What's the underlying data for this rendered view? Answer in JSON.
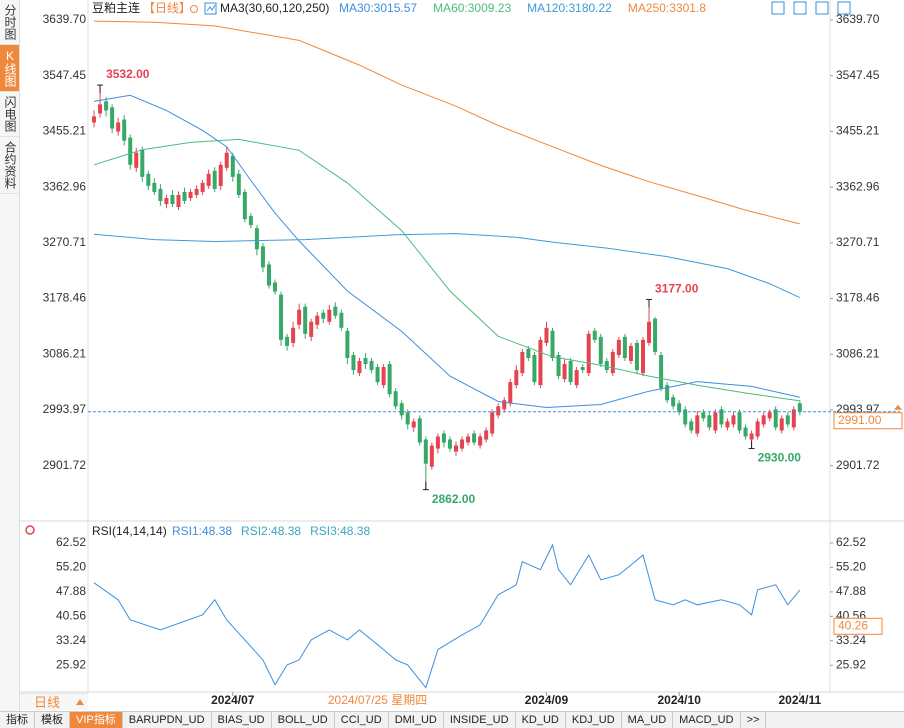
{
  "sidebar": {
    "tabs": [
      "分时图",
      "K线图",
      "闪电图",
      "合约资料"
    ],
    "active": 1
  },
  "chart_data": [
    {
      "type": "candlestick",
      "title": "豆粕主连",
      "period": "【日线】",
      "indicator": "MA3(30,60,120,250)",
      "up_color": "#e5434f",
      "down_color": "#38a868",
      "xlim": [
        -1,
        122
      ],
      "ylim": [
        2820,
        3653
      ],
      "yticks": [
        {
          "value": 3639.7,
          "label": "3639.70"
        },
        3547.45,
        3455.21,
        3362.96,
        3270.71,
        3178.46,
        3086.21,
        2993.97,
        2901.72
      ],
      "open": [
        3470,
        3485,
        3505,
        3495,
        3455,
        3475,
        3445,
        3395,
        3425,
        3385,
        3370,
        3360,
        3335,
        3350,
        3330,
        3355,
        3345,
        3350,
        3355,
        3365,
        3390,
        3365,
        3395,
        3415,
        3385,
        3355,
        3315,
        3295,
        3265,
        3235,
        3205,
        3185,
        3115,
        3105,
        3135,
        3165,
        3115,
        3135,
        3155,
        3140,
        3165,
        3155,
        3125,
        3085,
        3055,
        3080,
        3075,
        3065,
        3035,
        3070,
        3025,
        3005,
        2990,
        2965,
        2980,
        2945,
        2900,
        2930,
        2955,
        2945,
        2925,
        2930,
        2940,
        2955,
        2935,
        2945,
        2955,
        2985,
        2995,
        3005,
        3035,
        3055,
        3095,
        3085,
        3035,
        3105,
        3125,
        3085,
        3045,
        3075,
        3035,
        3065,
        3055,
        3125,
        3115,
        3075,
        3055,
        3085,
        3115,
        3075,
        3105,
        3055,
        3105,
        3145,
        3085,
        3035,
        3015,
        3005,
        2995,
        2975,
        2955,
        2990,
        2985,
        2960,
        2995,
        2965,
        2970,
        2990,
        2965,
        2945,
        2950,
        2970,
        2980,
        2995,
        2960,
        2985,
        2965,
        3005
      ],
      "high": [
        3490,
        3532,
        3512,
        3500,
        3478,
        3482,
        3450,
        3428,
        3430,
        3390,
        3378,
        3368,
        3350,
        3358,
        3356,
        3362,
        3360,
        3366,
        3375,
        3392,
        3396,
        3405,
        3430,
        3420,
        3392,
        3360,
        3320,
        3300,
        3270,
        3240,
        3210,
        3190,
        3120,
        3140,
        3170,
        3170,
        3145,
        3156,
        3160,
        3168,
        3172,
        3160,
        3130,
        3090,
        3080,
        3088,
        3080,
        3070,
        3070,
        3075,
        3030,
        3010,
        2995,
        2980,
        2985,
        2950,
        2940,
        2955,
        2960,
        2950,
        2942,
        2950,
        2955,
        2960,
        2955,
        2965,
        2995,
        3005,
        3015,
        3045,
        3068,
        3095,
        3100,
        3090,
        3115,
        3140,
        3130,
        3090,
        3078,
        3080,
        3065,
        3070,
        3125,
        3130,
        3120,
        3080,
        3095,
        3115,
        3120,
        3105,
        3110,
        3115,
        3177,
        3148,
        3090,
        3040,
        3020,
        3010,
        3000,
        2980,
        2992,
        2995,
        2990,
        2995,
        3000,
        2980,
        2990,
        2995,
        2970,
        2960,
        2980,
        2990,
        2995,
        3000,
        2985,
        2990,
        3000,
        3010
      ],
      "low": [
        3462,
        3478,
        3480,
        3452,
        3448,
        3432,
        3392,
        3388,
        3372,
        3358,
        3350,
        3332,
        3328,
        3330,
        3325,
        3335,
        3340,
        3345,
        3350,
        3360,
        3355,
        3358,
        3390,
        3372,
        3345,
        3305,
        3295,
        3250,
        3222,
        3195,
        3185,
        3100,
        3092,
        3098,
        3128,
        3112,
        3108,
        3128,
        3138,
        3135,
        3145,
        3125,
        3070,
        3052,
        3050,
        3062,
        3055,
        3035,
        3030,
        3015,
        2995,
        2978,
        2962,
        2958,
        2935,
        2862,
        2895,
        2922,
        2932,
        2925,
        2918,
        2925,
        2935,
        2935,
        2930,
        2940,
        2950,
        2980,
        2990,
        3000,
        3030,
        3050,
        3075,
        3035,
        3030,
        3100,
        3075,
        3045,
        3040,
        3035,
        3030,
        3055,
        3050,
        3105,
        3065,
        3055,
        3050,
        3080,
        3075,
        3070,
        3055,
        3050,
        3100,
        3085,
        3025,
        3005,
        2995,
        2985,
        2965,
        2955,
        2950,
        2975,
        2960,
        2955,
        2965,
        2960,
        2965,
        2955,
        2945,
        2930,
        2945,
        2965,
        2975,
        2960,
        2955,
        2965,
        2960,
        2985
      ],
      "close": [
        3480,
        3500,
        3490,
        3460,
        3470,
        3440,
        3400,
        3420,
        3380,
        3365,
        3355,
        3340,
        3345,
        3335,
        3350,
        3340,
        3355,
        3360,
        3370,
        3385,
        3360,
        3400,
        3420,
        3380,
        3350,
        3310,
        3300,
        3260,
        3230,
        3200,
        3190,
        3110,
        3100,
        3130,
        3160,
        3120,
        3140,
        3150,
        3145,
        3160,
        3150,
        3130,
        3080,
        3060,
        3075,
        3070,
        3060,
        3040,
        3065,
        3020,
        3000,
        2985,
        2970,
        2975,
        2940,
        2905,
        2935,
        2950,
        2940,
        2930,
        2935,
        2945,
        2950,
        2940,
        2950,
        2960,
        2990,
        3000,
        3010,
        3040,
        3060,
        3090,
        3080,
        3040,
        3110,
        3130,
        3080,
        3050,
        3070,
        3040,
        3060,
        3060,
        3120,
        3110,
        3070,
        3060,
        3090,
        3110,
        3080,
        3100,
        3060,
        3110,
        3140,
        3090,
        3030,
        3010,
        3000,
        2990,
        2970,
        2960,
        2985,
        2980,
        2965,
        2990,
        2970,
        2975,
        2985,
        2960,
        2950,
        2955,
        2975,
        2985,
        2990,
        2965,
        2980,
        2970,
        2995,
        2991
      ],
      "series": [
        {
          "name": "MA30:3015.57",
          "color": "#3c8fe0",
          "x": [
            0,
            6,
            12,
            18,
            22,
            26,
            30,
            34,
            42,
            51,
            59,
            67,
            75,
            84,
            92,
            100,
            109,
            117
          ],
          "values": [
            3505,
            3515,
            3490,
            3457,
            3430,
            3374,
            3320,
            3274,
            3191,
            3124,
            3050,
            3008,
            2998,
            3003,
            3025,
            3041,
            3033,
            3015
          ]
        },
        {
          "name": "MA60:3009.23",
          "color": "#4dbb7f",
          "x": [
            0,
            8,
            16,
            24,
            34,
            42,
            51,
            59,
            67,
            76,
            84,
            92,
            100,
            108,
            117
          ],
          "values": [
            3400,
            3425,
            3437,
            3442,
            3424,
            3370,
            3291,
            3191,
            3116,
            3082,
            3068,
            3050,
            3035,
            3022,
            3009
          ]
        },
        {
          "name": "MA120:3180.22",
          "color": "#3e9ad6",
          "x": [
            0,
            10,
            20,
            35,
            50,
            60,
            70,
            76,
            85,
            95,
            105,
            112,
            117
          ],
          "values": [
            3285,
            3276,
            3273,
            3276,
            3284,
            3286,
            3280,
            3272,
            3262,
            3248,
            3228,
            3203,
            3180
          ]
        },
        {
          "name": "MA250:3301.8",
          "color": "#f0883c",
          "x": [
            0,
            10,
            20,
            34,
            44,
            51,
            60,
            67,
            76,
            84,
            92,
            100,
            108,
            117
          ],
          "values": [
            3638,
            3636,
            3630,
            3606,
            3565,
            3532,
            3497,
            3465,
            3430,
            3399,
            3372,
            3349,
            3325,
            3302
          ]
        }
      ],
      "annotations": [
        {
          "at": 1,
          "value": 3532,
          "label": "3532.00"
        },
        {
          "at": 55,
          "value": 2862,
          "label": "2862.00"
        },
        {
          "at": 92,
          "value": 3177,
          "label": "3177.00"
        },
        {
          "at": 109,
          "value": 2930,
          "label": "2930.00"
        }
      ],
      "last": {
        "value": 2991,
        "label": "2991.00"
      }
    },
    {
      "type": "line",
      "title": "RSI(14,14,14)",
      "xlim": [
        -1,
        122
      ],
      "ylim": [
        18.5,
        64
      ],
      "yticks": [
        62.52,
        {
          "value": 55.2,
          "label": "55.20"
        },
        47.88,
        40.56,
        33.24,
        25.92
      ],
      "xticks": [
        {
          "value": 23,
          "label": "2024/07"
        },
        {
          "value": 75,
          "label": "2024/09"
        },
        {
          "value": 97,
          "label": "2024/10"
        },
        {
          "value": 117,
          "label": "2024/11"
        }
      ],
      "cursor_date": {
        "value": 47,
        "label": "2024/07/25 星期四"
      },
      "cursor_value": 40.26,
      "series": [
        {
          "name": "RSI1:48.38",
          "color": "#3c8fe0",
          "x": [
            0,
            4,
            6,
            11,
            18,
            20,
            22,
            25,
            28,
            30,
            32,
            34,
            36,
            39,
            42,
            44,
            48,
            50,
            52,
            55,
            57,
            61,
            64,
            67,
            70,
            71,
            74,
            76,
            77,
            79,
            82,
            84,
            87,
            89,
            91,
            93,
            96,
            98,
            100,
            104,
            107,
            109,
            110,
            113,
            115,
            117
          ],
          "values": [
            50.6,
            45.5,
            39.5,
            36.5,
            41.0,
            45.5,
            39.5,
            33.5,
            27.5,
            20.1,
            26.0,
            27.5,
            33.5,
            36.5,
            33.5,
            36.5,
            30.6,
            27.5,
            26.0,
            19.2,
            30.6,
            35.0,
            38.0,
            47.0,
            50.0,
            56.9,
            54.5,
            61.9,
            54.5,
            50.0,
            58.9,
            51.5,
            53.0,
            55.9,
            58.9,
            45.5,
            44.0,
            45.5,
            44.0,
            45.5,
            44.0,
            41.0,
            48.5,
            50.0,
            44.0,
            48.4
          ]
        }
      ],
      "extra_legend": [
        {
          "name": "RSI2:48.38",
          "color": "#39a6b8"
        },
        {
          "name": "RSI3:48.38",
          "color": "#3aa8c0"
        }
      ]
    }
  ],
  "footer": {
    "period": "日线",
    "tabs": [
      "指标",
      "模板",
      "VIP指标",
      "BARUPDN_UD",
      "BIAS_UD",
      "BOLL_UD",
      "CCI_UD",
      "DMI_UD",
      "INSIDE_UD",
      "KD_UD",
      "KDJ_UD",
      "MA_UD",
      "MACD_UD",
      ">>"
    ],
    "active": 2
  }
}
